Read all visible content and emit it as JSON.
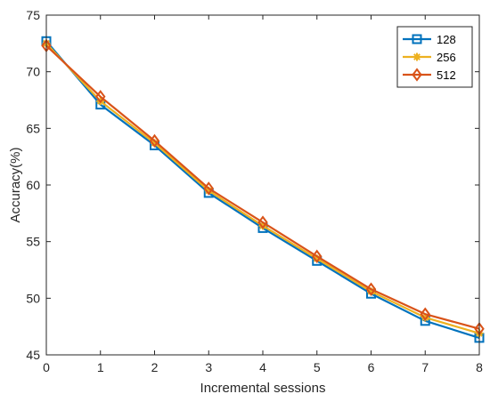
{
  "chart_data": {
    "type": "line",
    "title": "",
    "xlabel": "Incremental sessions",
    "ylabel": "Accuracy(%)",
    "x": [
      0,
      1,
      2,
      3,
      4,
      5,
      6,
      7,
      8
    ],
    "xlim": [
      0,
      8
    ],
    "ylim": [
      45,
      75
    ],
    "xticks": [
      "0",
      "1",
      "2",
      "3",
      "4",
      "5",
      "6",
      "7",
      "8"
    ],
    "yticks": [
      "45",
      "50",
      "55",
      "60",
      "65",
      "70",
      "75"
    ],
    "grid": false,
    "legend_position": "top-right",
    "series": [
      {
        "name": "128",
        "color": "#0072BD",
        "marker": "square",
        "values": [
          72.7,
          67.1,
          63.5,
          59.3,
          56.2,
          53.3,
          50.4,
          48.0,
          46.5
        ]
      },
      {
        "name": "256",
        "color": "#EDB120",
        "marker": "asterisk",
        "values": [
          72.5,
          67.4,
          63.7,
          59.5,
          56.4,
          53.5,
          50.6,
          48.3,
          46.9
        ]
      },
      {
        "name": "512",
        "color": "#D95319",
        "marker": "diamond",
        "values": [
          72.3,
          67.8,
          63.9,
          59.7,
          56.7,
          53.7,
          50.8,
          48.6,
          47.3
        ]
      }
    ]
  }
}
